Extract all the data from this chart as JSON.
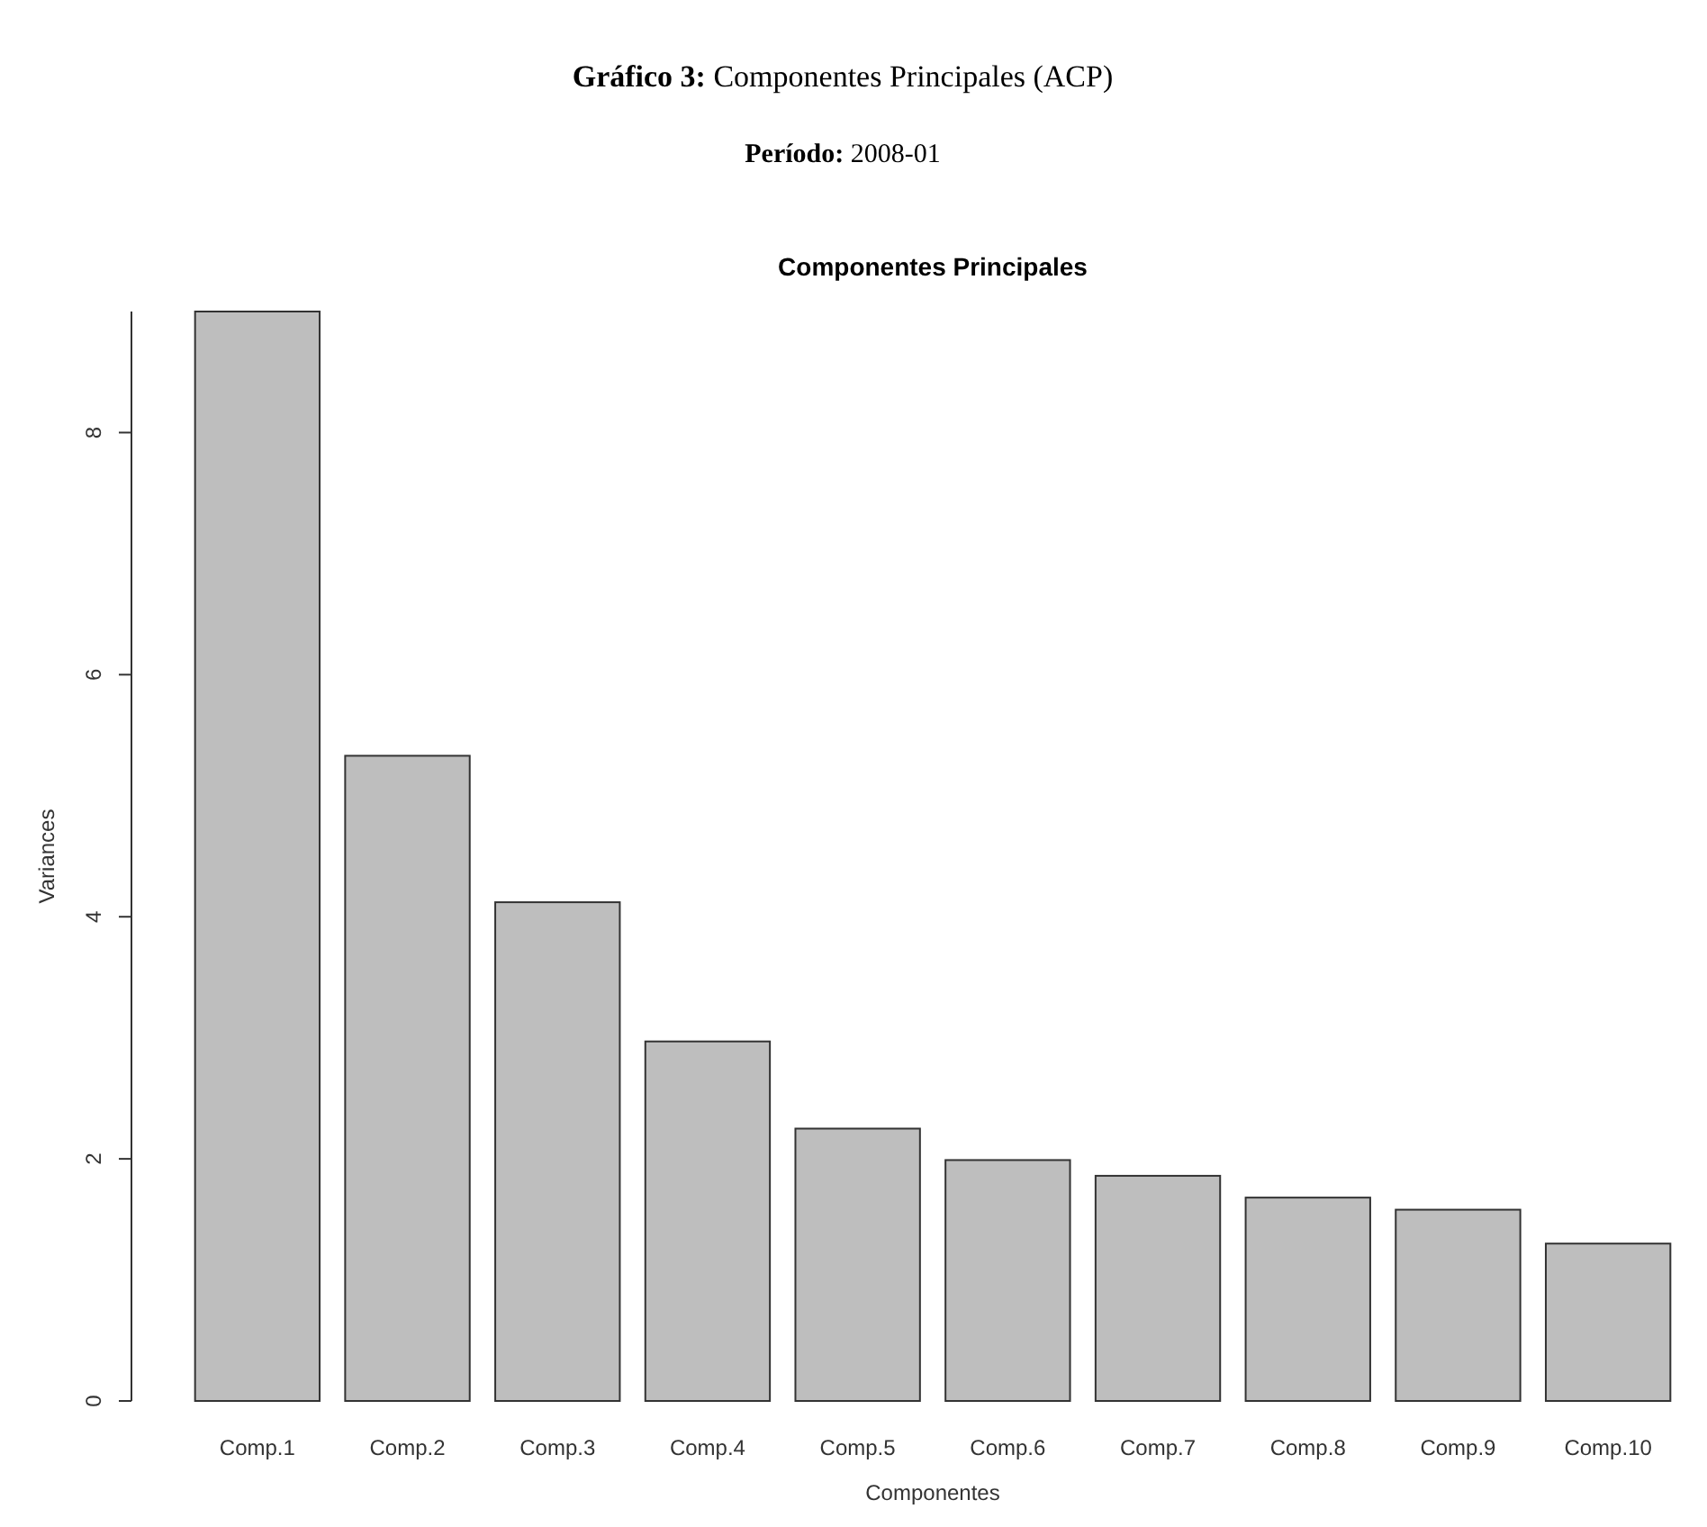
{
  "chart_data": {
    "type": "bar",
    "title": "Gráfico 3: Componentes Principales (ACP)",
    "subtitle": "Período: 2008-01",
    "annotations": [
      "Componentes Principales"
    ],
    "xlabel": "Componentes",
    "ylabel": "Variances",
    "categories": [
      "Comp.1",
      "Comp.2",
      "Comp.3",
      "Comp.4",
      "Comp.5",
      "Comp.6",
      "Comp.7",
      "Comp.8",
      "Comp.9",
      "Comp.10"
    ],
    "values": [
      9.0,
      5.33,
      4.12,
      2.97,
      2.25,
      1.99,
      1.86,
      1.68,
      1.58,
      1.3
    ],
    "color": "#bebebe",
    "ylim": [
      0,
      9
    ],
    "yticks": [
      0,
      2,
      4,
      6,
      8
    ],
    "grid": false
  }
}
